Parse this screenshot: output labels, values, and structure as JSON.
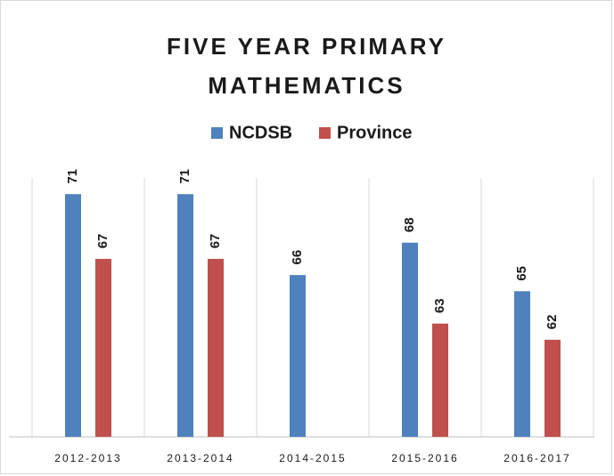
{
  "chart_data": {
    "type": "bar",
    "title": "FIVE YEAR PRIMARY MATHEMATICS",
    "categories": [
      "2012-2013",
      "2013-2014",
      "2014-2015",
      "2015-2016",
      "2016-2017"
    ],
    "series": [
      {
        "name": "NCDSB",
        "color": "#4f81bd",
        "values": [
          71,
          71,
          66,
          68,
          65
        ]
      },
      {
        "name": "Province",
        "color": "#c0504d",
        "values": [
          67,
          67,
          null,
          63,
          62
        ]
      }
    ],
    "ylim": [
      56,
      72
    ]
  }
}
